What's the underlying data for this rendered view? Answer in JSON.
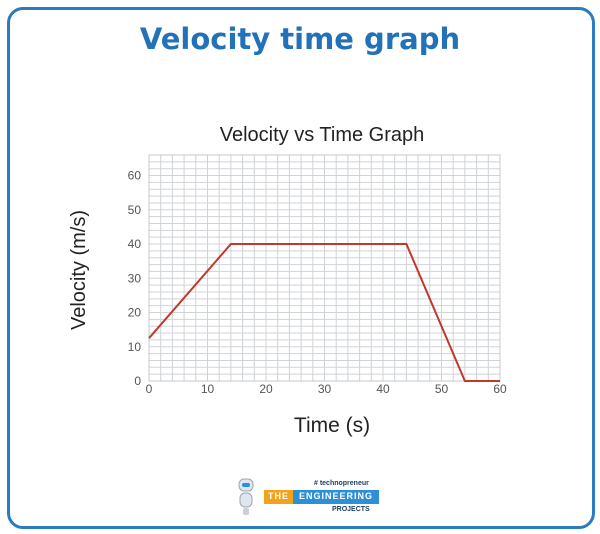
{
  "header": {
    "title": "Velocity time graph"
  },
  "logo": {
    "tagline": "# technopreneur",
    "the": "THE",
    "engineering": "ENGINEERING",
    "projects": "PROJECTS"
  },
  "chart_data": {
    "type": "line",
    "title": "Velocity vs Time Graph",
    "xlabel": "Time (s)",
    "ylabel": "Velocity (m/s)",
    "xlim": [
      0,
      60
    ],
    "ylim": [
      0,
      66
    ],
    "xticks": [
      0,
      10,
      20,
      30,
      40,
      50,
      60
    ],
    "yticks": [
      0,
      10,
      20,
      30,
      40,
      50,
      60
    ],
    "grid": true,
    "line_color": "#c0392b",
    "series": [
      {
        "x": [
          0,
          14,
          44,
          54,
          60
        ],
        "y": [
          12.5,
          40,
          40,
          0,
          0
        ]
      }
    ]
  }
}
